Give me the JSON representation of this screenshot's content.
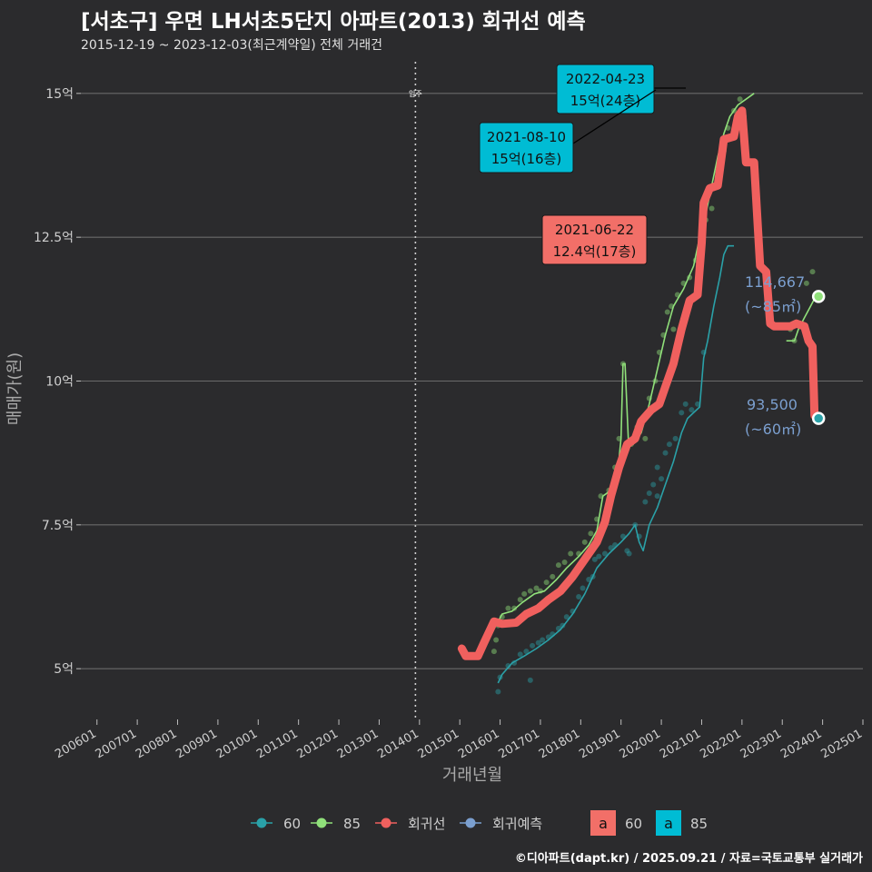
{
  "title": "[서초구] 우면 LH서초5단지 아파트(2013) 회귀선 예측",
  "subtitle": "2015-12-19 ~ 2023-12-03(최근계약일) 전체 거래건",
  "footer": "©디아파트(dapt.kr) / 2025.09.21 / 자료=국토교통부 실거래가",
  "colors": {
    "bg": "#2b2b2d",
    "grid": "#6a6a6a",
    "s60": "#2aa1a8",
    "s85": "#90e07a",
    "regression": "#f0605e",
    "forecast": "#7b9fcf",
    "label85": "#00bcd4",
    "labelPeak": "#f26f68",
    "axisText": "#cfcfcf"
  },
  "chart_data": {
    "type": "line",
    "xlabel": "거래년월",
    "ylabel": "매매가(원)",
    "xlim": [
      2005.6,
      2025.0
    ],
    "ylim": [
      4.15,
      15.55
    ],
    "x_ticks": [
      {
        "v": 2006.0,
        "label": "200601"
      },
      {
        "v": 2007.0,
        "label": "200701"
      },
      {
        "v": 2008.0,
        "label": "200801"
      },
      {
        "v": 2009.0,
        "label": "200901"
      },
      {
        "v": 2010.0,
        "label": "201001"
      },
      {
        "v": 2011.0,
        "label": "201101"
      },
      {
        "v": 2012.0,
        "label": "201201"
      },
      {
        "v": 2013.0,
        "label": "201301"
      },
      {
        "v": 2014.0,
        "label": "201401"
      },
      {
        "v": 2015.0,
        "label": "201501"
      },
      {
        "v": 2016.0,
        "label": "201601"
      },
      {
        "v": 2017.0,
        "label": "201701"
      },
      {
        "v": 2018.0,
        "label": "201801"
      },
      {
        "v": 2019.0,
        "label": "201901"
      },
      {
        "v": 2020.0,
        "label": "202001"
      },
      {
        "v": 2021.0,
        "label": "202101"
      },
      {
        "v": 2022.0,
        "label": "202201"
      },
      {
        "v": 2023.0,
        "label": "202301"
      },
      {
        "v": 2024.0,
        "label": "202401"
      },
      {
        "v": 2025.0,
        "label": "202501"
      }
    ],
    "y_ticks": [
      {
        "v": 5,
        "label": "5억"
      },
      {
        "v": 7.5,
        "label": "7.5억"
      },
      {
        "v": 10,
        "label": "10억"
      },
      {
        "v": 12.5,
        "label": "12.5억"
      },
      {
        "v": 15,
        "label": "15억"
      }
    ],
    "move_in": {
      "x": 2013.9,
      "label": "입주"
    },
    "series": [
      {
        "name": "60",
        "key": "s60",
        "points": [
          [
            2015.95,
            4.75
          ],
          [
            2016.05,
            4.9
          ],
          [
            2016.3,
            5.1
          ],
          [
            2016.6,
            5.22
          ],
          [
            2016.9,
            5.35
          ],
          [
            2017.2,
            5.5
          ],
          [
            2017.5,
            5.68
          ],
          [
            2017.8,
            5.95
          ],
          [
            2018.1,
            6.3
          ],
          [
            2018.4,
            6.75
          ],
          [
            2018.7,
            7.0
          ],
          [
            2019.0,
            7.2
          ],
          [
            2019.2,
            7.35
          ],
          [
            2019.35,
            7.5
          ],
          [
            2019.45,
            7.2
          ],
          [
            2019.55,
            7.05
          ],
          [
            2019.7,
            7.5
          ],
          [
            2019.9,
            7.8
          ],
          [
            2020.1,
            8.2
          ],
          [
            2020.3,
            8.6
          ],
          [
            2020.5,
            9.1
          ],
          [
            2020.65,
            9.35
          ],
          [
            2020.8,
            9.45
          ],
          [
            2020.95,
            9.55
          ],
          [
            2021.05,
            10.4
          ],
          [
            2021.15,
            10.7
          ],
          [
            2021.3,
            11.3
          ],
          [
            2021.45,
            11.8
          ],
          [
            2021.55,
            12.2
          ],
          [
            2021.65,
            12.35
          ],
          [
            2021.8,
            12.35
          ]
        ]
      },
      {
        "name": "85",
        "key": "s85",
        "points": [
          [
            2015.9,
            5.75
          ],
          [
            2016.05,
            5.95
          ],
          [
            2016.3,
            6.0
          ],
          [
            2016.55,
            6.15
          ],
          [
            2016.85,
            6.3
          ],
          [
            2017.1,
            6.35
          ],
          [
            2017.4,
            6.55
          ],
          [
            2017.65,
            6.75
          ],
          [
            2017.95,
            6.95
          ],
          [
            2018.2,
            7.15
          ],
          [
            2018.4,
            7.4
          ],
          [
            2018.5,
            7.8
          ],
          [
            2018.55,
            8.0
          ],
          [
            2018.75,
            8.1
          ],
          [
            2018.9,
            8.3
          ],
          [
            2019.0,
            9.0
          ],
          [
            2019.05,
            10.3
          ],
          [
            2019.1,
            10.3
          ],
          [
            2019.18,
            9.0
          ],
          [
            2019.3,
            8.9
          ],
          [
            2019.5,
            9.1
          ],
          [
            2019.7,
            9.6
          ],
          [
            2019.9,
            10.2
          ],
          [
            2020.1,
            10.8
          ],
          [
            2020.3,
            11.3
          ],
          [
            2020.55,
            11.6
          ],
          [
            2020.8,
            12.0
          ],
          [
            2020.95,
            12.5
          ],
          [
            2021.1,
            12.9
          ],
          [
            2021.25,
            13.4
          ],
          [
            2021.4,
            13.9
          ],
          [
            2021.55,
            14.3
          ],
          [
            2021.7,
            14.6
          ],
          [
            2021.9,
            14.8
          ],
          [
            2022.1,
            14.9
          ],
          [
            2022.3,
            15.0
          ]
        ]
      },
      {
        "name": "85-recent",
        "key": "s85",
        "points": [
          [
            2023.1,
            10.7
          ],
          [
            2023.3,
            10.7
          ],
          [
            2023.4,
            10.9
          ],
          [
            2023.55,
            11.1
          ],
          [
            2023.7,
            11.3
          ],
          [
            2023.85,
            11.5
          ]
        ]
      }
    ],
    "regression": [
      [
        2015.05,
        5.35
      ],
      [
        2015.15,
        5.22
      ],
      [
        2015.45,
        5.22
      ],
      [
        2015.6,
        5.45
      ],
      [
        2015.85,
        5.82
      ],
      [
        2016.05,
        5.78
      ],
      [
        2016.4,
        5.8
      ],
      [
        2016.65,
        5.95
      ],
      [
        2016.95,
        6.05
      ],
      [
        2017.2,
        6.2
      ],
      [
        2017.5,
        6.35
      ],
      [
        2017.8,
        6.6
      ],
      [
        2018.1,
        6.9
      ],
      [
        2018.4,
        7.2
      ],
      [
        2018.6,
        7.55
      ],
      [
        2018.75,
        8.0
      ],
      [
        2018.95,
        8.5
      ],
      [
        2019.15,
        8.9
      ],
      [
        2019.35,
        9.0
      ],
      [
        2019.5,
        9.3
      ],
      [
        2019.75,
        9.5
      ],
      [
        2019.95,
        9.6
      ],
      [
        2020.1,
        9.9
      ],
      [
        2020.3,
        10.3
      ],
      [
        2020.5,
        10.9
      ],
      [
        2020.7,
        11.4
      ],
      [
        2020.9,
        11.5
      ],
      [
        2021.0,
        12.4
      ],
      [
        2021.05,
        13.1
      ],
      [
        2021.2,
        13.35
      ],
      [
        2021.4,
        13.4
      ],
      [
        2021.55,
        14.2
      ],
      [
        2021.8,
        14.25
      ],
      [
        2021.9,
        14.6
      ],
      [
        2022.0,
        14.7
      ],
      [
        2022.1,
        13.8
      ],
      [
        2022.3,
        13.8
      ],
      [
        2022.45,
        12.0
      ],
      [
        2022.6,
        11.9
      ],
      [
        2022.7,
        11.0
      ],
      [
        2022.8,
        10.95
      ],
      [
        2023.0,
        10.95
      ],
      [
        2023.2,
        10.95
      ],
      [
        2023.35,
        11.0
      ],
      [
        2023.55,
        10.95
      ],
      [
        2023.65,
        10.7
      ],
      [
        2023.75,
        10.6
      ],
      [
        2023.8,
        9.4
      ]
    ],
    "scatter60": [
      [
        2015.95,
        4.6
      ],
      [
        2016.0,
        4.85
      ],
      [
        2016.2,
        5.05
      ],
      [
        2016.35,
        5.1
      ],
      [
        2016.5,
        5.25
      ],
      [
        2016.65,
        5.3
      ],
      [
        2016.75,
        4.8
      ],
      [
        2016.8,
        5.4
      ],
      [
        2016.95,
        5.45
      ],
      [
        2017.05,
        5.5
      ],
      [
        2017.2,
        5.55
      ],
      [
        2017.3,
        5.6
      ],
      [
        2017.45,
        5.7
      ],
      [
        2017.55,
        5.75
      ],
      [
        2017.65,
        5.9
      ],
      [
        2017.8,
        6.0
      ],
      [
        2017.95,
        6.25
      ],
      [
        2018.05,
        6.4
      ],
      [
        2018.2,
        6.55
      ],
      [
        2018.35,
        6.9
      ],
      [
        2018.45,
        6.95
      ],
      [
        2018.6,
        7.0
      ],
      [
        2018.75,
        7.1
      ],
      [
        2018.85,
        7.15
      ],
      [
        2019.05,
        7.3
      ],
      [
        2019.15,
        7.05
      ],
      [
        2019.2,
        7.0
      ],
      [
        2019.35,
        7.5
      ],
      [
        2019.45,
        7.3
      ],
      [
        2019.6,
        7.9
      ],
      [
        2019.7,
        8.05
      ],
      [
        2019.8,
        8.2
      ],
      [
        2019.9,
        8.0
      ],
      [
        2020.0,
        8.3
      ],
      [
        2020.1,
        8.75
      ],
      [
        2020.2,
        8.9
      ],
      [
        2020.35,
        9.0
      ],
      [
        2020.5,
        9.45
      ],
      [
        2020.6,
        9.6
      ],
      [
        2020.75,
        9.5
      ],
      [
        2020.9,
        9.6
      ],
      [
        2021.05,
        10.5
      ],
      [
        2019.9,
        8.5
      ],
      [
        2018.3,
        6.6
      ]
    ],
    "scatter85": [
      [
        2015.85,
        5.3
      ],
      [
        2015.9,
        5.5
      ],
      [
        2015.95,
        5.75
      ],
      [
        2016.05,
        5.9
      ],
      [
        2016.2,
        6.05
      ],
      [
        2016.35,
        6.05
      ],
      [
        2016.5,
        6.2
      ],
      [
        2016.6,
        6.3
      ],
      [
        2016.75,
        6.35
      ],
      [
        2016.9,
        6.4
      ],
      [
        2017.0,
        6.35
      ],
      [
        2017.15,
        6.5
      ],
      [
        2017.3,
        6.6
      ],
      [
        2017.45,
        6.8
      ],
      [
        2017.6,
        6.85
      ],
      [
        2017.75,
        7.0
      ],
      [
        2017.95,
        7.0
      ],
      [
        2018.1,
        7.2
      ],
      [
        2018.25,
        7.35
      ],
      [
        2018.4,
        7.6
      ],
      [
        2018.5,
        8.0
      ],
      [
        2018.7,
        8.1
      ],
      [
        2018.85,
        8.5
      ],
      [
        2018.95,
        9.0
      ],
      [
        2019.05,
        10.3
      ],
      [
        2019.25,
        8.9
      ],
      [
        2019.4,
        9.2
      ],
      [
        2019.55,
        9.35
      ],
      [
        2019.7,
        9.7
      ],
      [
        2019.85,
        10.0
      ],
      [
        2019.95,
        10.5
      ],
      [
        2020.05,
        10.8
      ],
      [
        2020.15,
        11.2
      ],
      [
        2020.25,
        11.3
      ],
      [
        2020.4,
        11.5
      ],
      [
        2020.55,
        11.7
      ],
      [
        2020.7,
        11.8
      ],
      [
        2020.85,
        12.1
      ],
      [
        2021.0,
        12.4
      ],
      [
        2021.1,
        12.8
      ],
      [
        2021.25,
        13.0
      ],
      [
        2021.4,
        13.4
      ],
      [
        2021.55,
        14.0
      ],
      [
        2021.65,
        14.4
      ],
      [
        2021.8,
        14.7
      ],
      [
        2021.95,
        14.9
      ],
      [
        2022.05,
        14.6
      ],
      [
        2023.2,
        10.9
      ],
      [
        2023.45,
        11.0
      ],
      [
        2023.6,
        11.7
      ],
      [
        2023.75,
        11.9
      ],
      [
        2023.3,
        10.7
      ],
      [
        2019.6,
        9.0
      ],
      [
        2020.3,
        10.9
      ]
    ],
    "points_end": [
      {
        "series": "85",
        "x": 2023.9,
        "y": 11.47
      },
      {
        "series": "60",
        "x": 2023.9,
        "y": 9.35
      }
    ],
    "end_labels": [
      {
        "series": "85",
        "value": "114,667",
        "area": "(~85㎡)"
      },
      {
        "series": "60",
        "value": "93,500",
        "area": "(~60㎡)"
      }
    ],
    "annotations": [
      {
        "kind": "85",
        "date": "2022-04-23",
        "price": "15억(24층)",
        "x": 2022.3,
        "y": 15.0
      },
      {
        "kind": "85",
        "date": "2021-08-10",
        "price": "15억(16층)",
        "x": 2021.6,
        "y": 15.0
      },
      {
        "kind": "60",
        "date": "2021-06-22",
        "price": "12.4억(17층)",
        "x": 2021.5,
        "y": 12.4
      }
    ],
    "legend": {
      "items": [
        {
          "label": "60",
          "key": "s60"
        },
        {
          "label": "85",
          "key": "s85"
        },
        {
          "label": "회귀선",
          "key": "regression"
        },
        {
          "label": "회귀예측",
          "key": "forecast"
        }
      ],
      "boxes": [
        {
          "glyph": "a",
          "label": "60",
          "key": "labelPeak"
        },
        {
          "glyph": "a",
          "label": "85",
          "key": "label85"
        }
      ]
    }
  }
}
